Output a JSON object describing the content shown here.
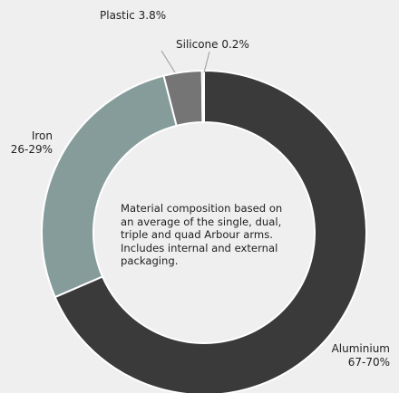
{
  "chart_data": {
    "type": "pie",
    "subtype": "donut",
    "title": "",
    "note": "Material composition based on an average of the single, dual, triple and quad Arbour arms. Includes internal and external packaging.",
    "slices": [
      {
        "label": "Aluminium",
        "value_label": "67-70%",
        "value": 68.5,
        "color": "#3a3a3a"
      },
      {
        "label": "Iron",
        "value_label": "26-29%",
        "value": 27.5,
        "color": "#869c9a"
      },
      {
        "label": "Plastic",
        "value_label": "3.8%",
        "value": 3.8,
        "color": "#757575"
      },
      {
        "label": "Silicone",
        "value_label": "0.2%",
        "value": 0.2,
        "color": "#a7a7a7"
      }
    ],
    "legend": "none"
  },
  "labels": {
    "plastic": "Plastic 3.8%",
    "silicone": "Silicone 0.2%",
    "iron_name": "Iron",
    "iron_value": "26-29%",
    "aluminium_name": "Aluminium",
    "aluminium_value": "67-70%"
  },
  "colors": {
    "background": "#efefef",
    "separator": "#ffffff",
    "leader_line": "#9a9a9a"
  }
}
